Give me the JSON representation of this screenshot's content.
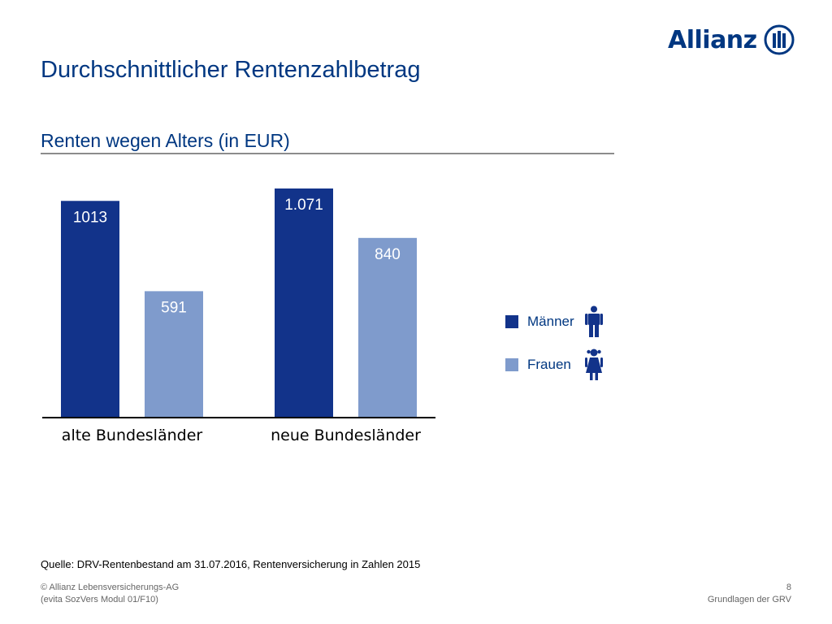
{
  "header": {
    "brand": "Allianz",
    "title": "Durchschnittlicher Rentenzahlbetrag"
  },
  "chart_data": {
    "type": "bar",
    "title": "Renten wegen Alters (in EUR)",
    "categories": [
      "alte Bundesländer",
      "neue Bundesländer"
    ],
    "series": [
      {
        "name": "Männer",
        "values": [
          1013,
          1071
        ],
        "labels": [
          "1013",
          "1.071"
        ],
        "color": "#12338a",
        "icon": "man-icon"
      },
      {
        "name": "Frauen",
        "values": [
          591,
          840
        ],
        "labels": [
          "591",
          "840"
        ],
        "color": "#7f9bcc",
        "icon": "woman-icon"
      }
    ],
    "ylim": [
      0,
      1071
    ],
    "grid": false,
    "legend_position": "right"
  },
  "footer": {
    "source": "Quelle: DRV-Rentenbestand am 31.07.2016, Rentenversicherung in Zahlen 2015",
    "copyright": "© Allianz Lebensversicherungs-AG",
    "module": "(evita SozVers Modul 01/F10)",
    "page_number": "8",
    "section": "Grundlagen der GRV"
  },
  "colors": {
    "brand": "#003781",
    "axis": "#000000",
    "rule": "#8c8c8c"
  }
}
